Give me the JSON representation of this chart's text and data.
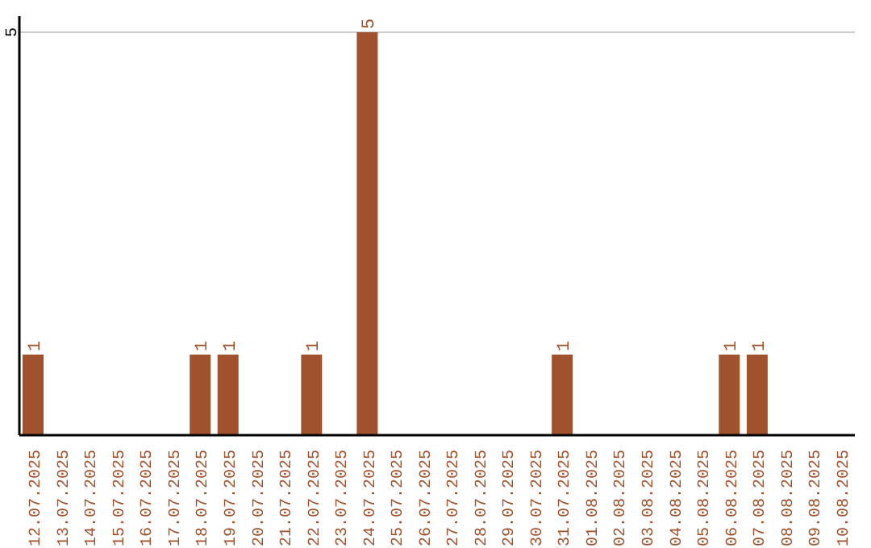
{
  "chart_data": {
    "type": "bar",
    "categories": [
      "12.07.2025",
      "13.07.2025",
      "14.07.2025",
      "15.07.2025",
      "16.07.2025",
      "17.07.2025",
      "18.07.2025",
      "19.07.2025",
      "20.07.2025",
      "21.07.2025",
      "22.07.2025",
      "23.07.2025",
      "24.07.2025",
      "25.07.2025",
      "26.07.2025",
      "27.07.2025",
      "28.07.2025",
      "29.07.2025",
      "30.07.2025",
      "31.07.2025",
      "01.08.2025",
      "02.08.2025",
      "03.08.2025",
      "04.08.2025",
      "05.08.2025",
      "06.08.2025",
      "07.08.2025",
      "08.08.2025",
      "09.08.2025",
      "10.08.2025"
    ],
    "values": [
      1,
      0,
      0,
      0,
      0,
      0,
      1,
      1,
      0,
      0,
      1,
      0,
      5,
      0,
      0,
      0,
      0,
      0,
      0,
      1,
      0,
      0,
      0,
      0,
      0,
      1,
      1,
      0,
      0,
      0
    ],
    "value_labels": [
      "1",
      null,
      null,
      null,
      null,
      null,
      "1",
      "1",
      null,
      null,
      "1",
      null,
      "5",
      null,
      null,
      null,
      null,
      null,
      null,
      "1",
      null,
      null,
      null,
      null,
      null,
      "1",
      "1",
      null,
      null,
      null
    ],
    "color": "#a0522d",
    "ylim": [
      0,
      5.2
    ],
    "yticks": [
      5
    ],
    "grid": "y"
  }
}
